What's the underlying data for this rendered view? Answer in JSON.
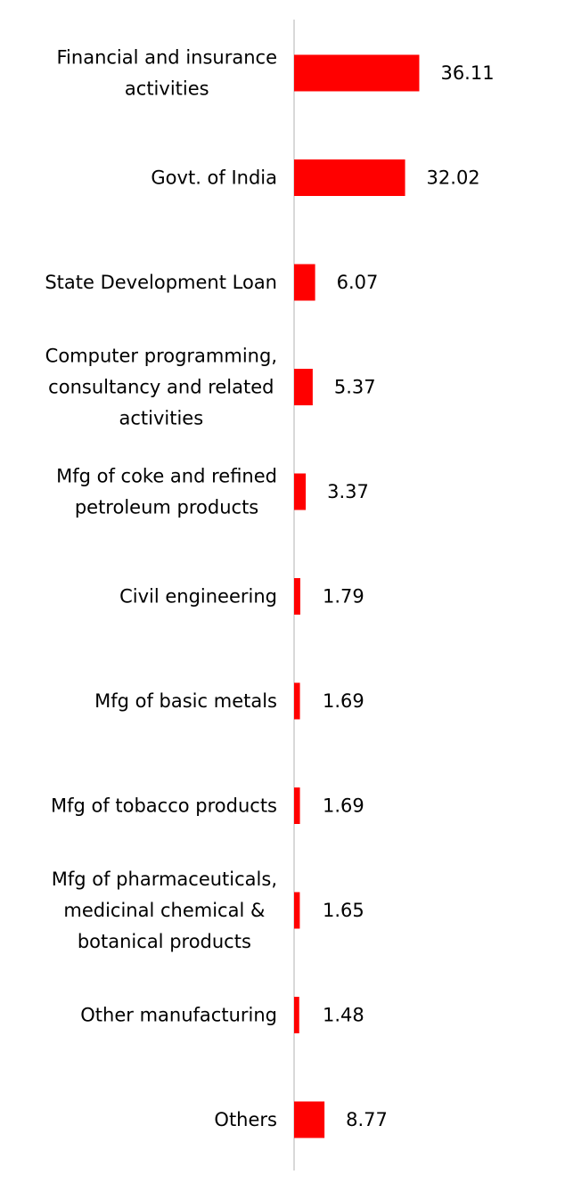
{
  "chart_data": {
    "type": "bar",
    "orientation": "horizontal",
    "categories": [
      [
        "Financial and insurance",
        "activities"
      ],
      [
        "Govt. of India"
      ],
      [
        "State Development Loan"
      ],
      [
        "Computer programming,",
        "consultancy and related",
        "activities"
      ],
      [
        "Mfg of coke and refined",
        "petroleum products"
      ],
      [
        "Civil engineering"
      ],
      [
        "Mfg of basic metals"
      ],
      [
        "Mfg of tobacco products"
      ],
      [
        "Mfg of pharmaceuticals,",
        "medicinal chemical &",
        "botanical products"
      ],
      [
        "Other manufacturing"
      ],
      [
        "Others"
      ]
    ],
    "values": [
      36.11,
      32.02,
      6.07,
      5.37,
      3.37,
      1.79,
      1.69,
      1.69,
      1.65,
      1.48,
      8.77
    ],
    "value_labels": [
      "36.11",
      "32.02",
      "6.07",
      "5.37",
      "3.37",
      "1.79",
      "1.69",
      "1.69",
      "1.65",
      "1.48",
      "8.77"
    ],
    "title": "",
    "xlabel": "",
    "ylabel": "",
    "xlim": [
      0,
      36.11
    ],
    "grid": false,
    "legend": "none",
    "colors": {
      "bar": "#ff0000",
      "axis": "#d9d9d9",
      "text": "#000000"
    }
  }
}
